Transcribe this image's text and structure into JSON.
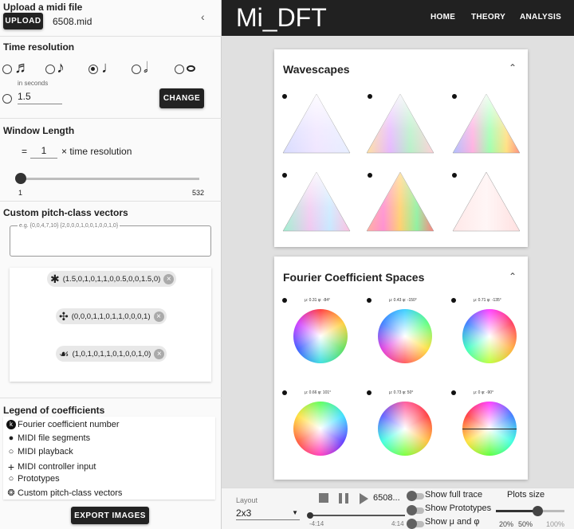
{
  "upload": {
    "title": "Upload a midi file",
    "button": "UPLOAD",
    "filename": "6508.mid",
    "collapse_icon": "chevron-left-icon"
  },
  "time_resolution": {
    "title": "Time resolution",
    "options": [
      "sixteenth-note-icon",
      "eighth-note-icon",
      "quarter-note-icon",
      "half-note-icon",
      "whole-note-icon"
    ],
    "selected": "quarter-note-icon",
    "in_seconds_label": "in seconds",
    "seconds_value": "1.5",
    "change_button": "CHANGE"
  },
  "window_length": {
    "title": "Window Length",
    "equals": "=",
    "value": "1",
    "suffix": "× time resolution",
    "slider_min": "1",
    "slider_max": "532",
    "slider_fraction": 0
  },
  "custom_pcv": {
    "title": "Custom pitch-class vectors",
    "placeholder": "e.g. {0,0,4,7,10} {2,0,0,0,1,0,0,1,0,0,1,0}",
    "chips": [
      {
        "icon": "asterisk-prototype-icon",
        "label": "(1.5,0,1,0,1,1,0,0.5,0,0,1.5,0)"
      },
      {
        "icon": "clover-prototype-icon",
        "label": "(0,0,0,1,1,0,1,1,0,0,0,1)"
      },
      {
        "icon": "trefoil-prototype-icon",
        "label": "(1,0,1,0,1,1,0,1,0,0,1,0)"
      }
    ]
  },
  "legend": {
    "title": "Legend of coefficients",
    "items": [
      {
        "icon": "k-number-icon",
        "label": "Fourier coefficient number"
      },
      {
        "icon": "filled-dot-icon",
        "label": "MIDI file segments"
      },
      {
        "icon": "ring-icon",
        "label": "MIDI playback"
      },
      {
        "icon": "plus-icon",
        "label": "MIDI controller input"
      },
      {
        "icon": "hollow-circle-icon",
        "label": "Prototypes"
      },
      {
        "icon": "circled-glyph-icon",
        "label": "Custom pitch-class vectors"
      }
    ]
  },
  "export_button": "EXPORT IMAGES",
  "header": {
    "brand": "Mi_DFT",
    "nav": [
      "HOME",
      "THEORY",
      "ANALYSIS"
    ]
  },
  "wavescapes": {
    "title": "Wavescapes",
    "numbers": [
      "1",
      "2",
      "3",
      "4",
      "5",
      "6"
    ]
  },
  "fourier": {
    "title": "Fourier Coefficient Spaces",
    "numbers": [
      "1",
      "2",
      "3",
      "4",
      "5",
      "6"
    ],
    "captions": [
      "μ: 0.31 φ: -84°",
      "μ: 0.43 φ: -150°",
      "μ: 0.71 φ: -135°",
      "μ: 0.66 φ: 101°",
      "μ: 0.73 φ: 50°",
      "μ: 0 φ: -90°"
    ]
  },
  "bottom": {
    "layout_label": "Layout",
    "layout_value": "2x3",
    "track_name": "6508...",
    "time_start": "-4:14",
    "time_end": "4:14",
    "switches": [
      "Show full trace",
      "Show Prototypes",
      "Show μ and φ"
    ],
    "plot_size_label": "Plots size",
    "plot_size_ticks": [
      "20%",
      "50%",
      "100%"
    ],
    "plot_size_fraction": 0.6
  },
  "colors": {
    "header_bg": "#212121",
    "button_bg": "#222222",
    "page_bg": "#e0e0e0"
  }
}
